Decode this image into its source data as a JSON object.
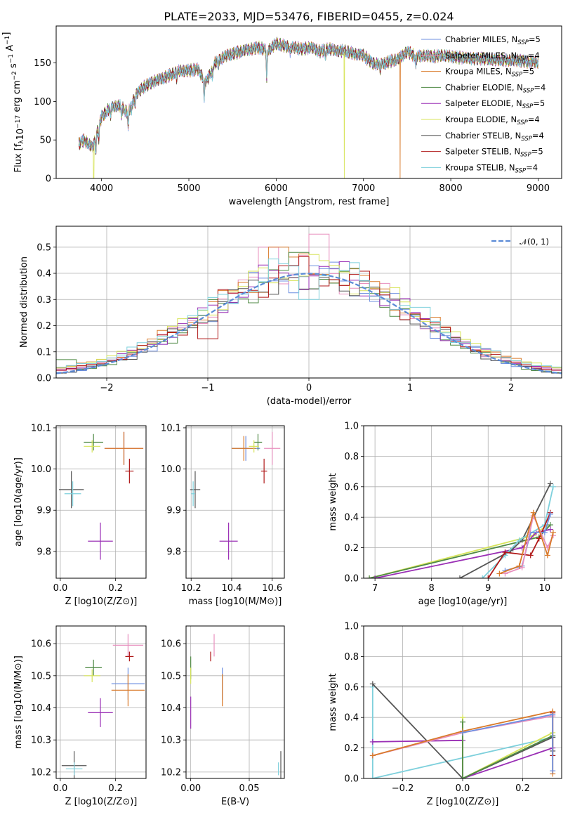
{
  "title": "PLATE=2033, MJD=53476, FIBERID=0455, z=0.024",
  "series_colors": {
    "chabrier_miles": "#6d8fe0",
    "salpeter_miles": "#e88fbe",
    "kroupa_miles": "#d97a2a",
    "chabrier_elodie": "#4f8a45",
    "salpeter_elodie": "#9a2fb5",
    "kroupa_elodie": "#d7e45a",
    "chabrier_stelib": "#555555",
    "salpeter_stelib": "#b01818",
    "kroupa_stelib": "#7ed0dc"
  },
  "chart_data": [
    {
      "id": "spectrum",
      "type": "line",
      "xlabel": "wavelength [Angstrom, rest frame]",
      "ylabel_parts": [
        "Flux [f",
        "λ",
        "10",
        "−17",
        " erg cm",
        "−2",
        " s",
        "−1",
        " A",
        "−1",
        "]"
      ],
      "xlim": [
        3480,
        9270
      ],
      "ylim": [
        0,
        198
      ],
      "xticks": [
        4000,
        5000,
        6000,
        7000,
        8000,
        9000
      ],
      "yticks": [
        0,
        50,
        100,
        150
      ],
      "legend_location": "upper right",
      "legend": [
        {
          "key": "chabrier_miles",
          "label": "Chabrier MILES, N",
          "sub": "SSP",
          "tail": "=5"
        },
        {
          "key": "salpeter_miles",
          "label": "Salpeter MILES, N",
          "sub": "SSP",
          "tail": "=4"
        },
        {
          "key": "kroupa_miles",
          "label": "Kroupa MILES, N",
          "sub": "SSP",
          "tail": "=5"
        },
        {
          "key": "chabrier_elodie",
          "label": "Chabrier ELODIE, N",
          "sub": "SSP",
          "tail": "=4"
        },
        {
          "key": "salpeter_elodie",
          "label": "Salpeter ELODIE, N",
          "sub": "SSP",
          "tail": "=5"
        },
        {
          "key": "kroupa_elodie",
          "label": "Kroupa ELODIE, N",
          "sub": "SSP",
          "tail": "=4"
        },
        {
          "key": "chabrier_stelib",
          "label": "Chabrier STELIB, N",
          "sub": "SSP",
          "tail": "=4"
        },
        {
          "key": "salpeter_stelib",
          "label": "Salpeter STELIB, N",
          "sub": "SSP",
          "tail": "=5"
        },
        {
          "key": "kroupa_stelib",
          "label": "Kroupa STELIB, N",
          "sub": "SSP",
          "tail": "=4"
        }
      ],
      "continuum": [
        [
          3740,
          45
        ],
        [
          3800,
          50
        ],
        [
          3900,
          40
        ],
        [
          3950,
          60
        ],
        [
          4000,
          80
        ],
        [
          4100,
          92
        ],
        [
          4200,
          95
        ],
        [
          4300,
          85
        ],
        [
          4400,
          110
        ],
        [
          4500,
          120
        ],
        [
          4600,
          126
        ],
        [
          4700,
          130
        ],
        [
          4800,
          135
        ],
        [
          4900,
          140
        ],
        [
          5000,
          140
        ],
        [
          5100,
          142
        ],
        [
          5200,
          125
        ],
        [
          5300,
          150
        ],
        [
          5400,
          158
        ],
        [
          5500,
          162
        ],
        [
          5600,
          165
        ],
        [
          5700,
          168
        ],
        [
          5800,
          170
        ],
        [
          5900,
          166
        ],
        [
          6000,
          175
        ],
        [
          6100,
          172
        ],
        [
          6200,
          170
        ],
        [
          6300,
          168
        ],
        [
          6400,
          170
        ],
        [
          6500,
          165
        ],
        [
          6600,
          168
        ],
        [
          6700,
          166
        ],
        [
          6800,
          165
        ],
        [
          6900,
          162
        ],
        [
          7000,
          160
        ],
        [
          7100,
          150
        ],
        [
          7200,
          148
        ],
        [
          7300,
          152
        ],
        [
          7400,
          155
        ],
        [
          7500,
          165
        ],
        [
          7600,
          158
        ],
        [
          7700,
          160
        ],
        [
          7800,
          158
        ],
        [
          7900,
          160
        ],
        [
          8000,
          158
        ],
        [
          8200,
          156
        ],
        [
          8400,
          155
        ],
        [
          8600,
          154
        ],
        [
          8800,
          153
        ],
        [
          9000,
          150
        ]
      ],
      "absorption_lines": [
        [
          3934,
          20
        ],
        [
          3969,
          18
        ],
        [
          4102,
          15
        ],
        [
          4227,
          12
        ],
        [
          4305,
          22
        ],
        [
          4341,
          12
        ],
        [
          4384,
          10
        ],
        [
          4861,
          8
        ],
        [
          5175,
          28
        ],
        [
          5270,
          10
        ],
        [
          5335,
          8
        ],
        [
          5892,
          40
        ],
        [
          6162,
          8
        ],
        [
          6563,
          10
        ],
        [
          7190,
          8
        ],
        [
          7600,
          12
        ]
      ],
      "dropouts": [
        {
          "key": "kroupa_elodie",
          "x": 3910
        },
        {
          "key": "kroupa_elodie",
          "x": 6780
        },
        {
          "key": "kroupa_miles",
          "x": 7420
        }
      ]
    },
    {
      "id": "residuals",
      "type": "histogram",
      "xlabel": "(data-model)/error",
      "ylabel": "Normed distribution",
      "xlim": [
        -2.5,
        2.5
      ],
      "ylim": [
        0,
        0.58
      ],
      "xticks": [
        -2,
        -1,
        0,
        1,
        2
      ],
      "yticks": [
        0.0,
        0.1,
        0.2,
        0.3,
        0.4,
        0.5
      ],
      "legend_location": "upper right",
      "legend_label": "𝒩(0, 1)",
      "gaussian_color": "#5b8bd6",
      "bin_width": 0.1,
      "outlier_bins": [
        {
          "key": "salpeter_miles",
          "x": 0.1,
          "y": 0.55
        },
        {
          "key": "salpeter_miles",
          "x": -0.4,
          "y": 0.5
        },
        {
          "key": "kroupa_miles",
          "x": -0.3,
          "y": 0.5
        },
        {
          "key": "chabrier_elodie",
          "x": -0.1,
          "y": 0.48
        },
        {
          "key": "kroupa_stelib",
          "x": 0.0,
          "y": 0.3
        },
        {
          "key": "chabrier_stelib",
          "x": 0.0,
          "y": 0.34
        },
        {
          "key": "chabrier_elodie",
          "x": -2.4,
          "y": 0.07
        },
        {
          "key": "kroupa_stelib",
          "x": 1.1,
          "y": 0.27
        },
        {
          "key": "salpeter_stelib",
          "x": -1.0,
          "y": 0.15
        }
      ]
    },
    {
      "id": "age_vs_Z",
      "type": "errorbar",
      "xlabel": "Z [log10(Z/Z⊙)]",
      "ylabel": "age  [log10(age/yr)]",
      "xlim": [
        -0.015,
        0.31
      ],
      "ylim": [
        9.735,
        10.105
      ],
      "xticks": [
        0.0,
        0.2
      ],
      "yticks": [
        9.8,
        9.9,
        10.0,
        10.1
      ],
      "points": [
        {
          "key": "chabrier_miles",
          "x": 0.23,
          "y": 10.05,
          "xerr": 0.07,
          "yerr": 0.04
        },
        {
          "key": "salpeter_miles",
          "x": 0.23,
          "y": 10.05,
          "xerr": 0.07,
          "yerr": 0.04
        },
        {
          "key": "kroupa_miles",
          "x": 0.23,
          "y": 10.05,
          "xerr": 0.07,
          "yerr": 0.04
        },
        {
          "key": "chabrier_elodie",
          "x": 0.12,
          "y": 10.065,
          "xerr": 0.035,
          "yerr": 0.02
        },
        {
          "key": "salpeter_elodie",
          "x": 0.145,
          "y": 9.825,
          "xerr": 0.045,
          "yerr": 0.045
        },
        {
          "key": "kroupa_elodie",
          "x": 0.115,
          "y": 10.055,
          "xerr": 0.03,
          "yerr": 0.015
        },
        {
          "key": "chabrier_stelib",
          "x": 0.04,
          "y": 9.95,
          "xerr": 0.045,
          "yerr": 0.045
        },
        {
          "key": "salpeter_stelib",
          "x": 0.25,
          "y": 9.995,
          "xerr": 0.015,
          "yerr": 0.03
        },
        {
          "key": "kroupa_stelib",
          "x": 0.045,
          "y": 9.94,
          "xerr": 0.03,
          "yerr": 0.03
        }
      ]
    },
    {
      "id": "age_vs_mass",
      "type": "errorbar",
      "xlabel": "mass [log10(M/M⊙)]",
      "xlim": [
        10.175,
        10.66
      ],
      "ylim": [
        9.735,
        10.105
      ],
      "xticks": [
        10.2,
        10.4,
        10.6
      ],
      "yticks": [
        9.8,
        9.9,
        10.0,
        10.1
      ],
      "points": [
        {
          "key": "chabrier_miles",
          "x": 10.47,
          "y": 10.05,
          "xerr": 0.07,
          "yerr": 0.03
        },
        {
          "key": "salpeter_miles",
          "x": 10.6,
          "y": 10.05,
          "xerr": 0.04,
          "yerr": 0.04
        },
        {
          "key": "kroupa_miles",
          "x": 10.46,
          "y": 10.05,
          "xerr": 0.06,
          "yerr": 0.03
        },
        {
          "key": "chabrier_elodie",
          "x": 10.53,
          "y": 10.065,
          "xerr": 0.02,
          "yerr": 0.02
        },
        {
          "key": "salpeter_elodie",
          "x": 10.385,
          "y": 9.825,
          "xerr": 0.045,
          "yerr": 0.045
        },
        {
          "key": "kroupa_elodie",
          "x": 10.51,
          "y": 10.055,
          "xerr": 0.025,
          "yerr": 0.015
        },
        {
          "key": "chabrier_stelib",
          "x": 10.22,
          "y": 9.95,
          "xerr": 0.025,
          "yerr": 0.045
        },
        {
          "key": "salpeter_stelib",
          "x": 10.56,
          "y": 9.995,
          "xerr": 0.015,
          "yerr": 0.03
        },
        {
          "key": "kroupa_stelib",
          "x": 10.21,
          "y": 9.94,
          "xerr": 0.01,
          "yerr": 0.03
        }
      ]
    },
    {
      "id": "mass_weight_vs_age",
      "type": "line",
      "xlabel": "age  [log10(age/yr)]",
      "ylabel": "mass weight",
      "xlim": [
        6.8,
        10.3
      ],
      "ylim": [
        0,
        1.0
      ],
      "xticks": [
        7,
        8,
        9,
        10
      ],
      "yticks": [
        0.0,
        0.2,
        0.4,
        0.6,
        0.8,
        1.0
      ],
      "series": [
        {
          "key": "kroupa_elodie",
          "x": [
            6.9,
            9.8,
            10.05
          ],
          "y": [
            0.0,
            0.28,
            0.35
          ]
        },
        {
          "key": "chabrier_elodie",
          "x": [
            6.9,
            9.9,
            10.1
          ],
          "y": [
            0.0,
            0.27,
            0.35
          ]
        },
        {
          "key": "salpeter_elodie",
          "x": [
            7.0,
            9.6,
            9.85,
            10.1
          ],
          "y": [
            0.0,
            0.2,
            0.3,
            0.32
          ]
        },
        {
          "key": "chabrier_stelib",
          "x": [
            8.5,
            9.4,
            9.6,
            10.1
          ],
          "y": [
            0.0,
            0.18,
            0.25,
            0.62
          ]
        },
        {
          "key": "kroupa_stelib",
          "x": [
            8.9,
            9.3,
            9.55,
            10.0,
            10.15
          ],
          "y": [
            0.0,
            0.15,
            0.25,
            0.35,
            0.6
          ]
        },
        {
          "key": "salpeter_stelib",
          "x": [
            9.0,
            9.3,
            9.75,
            9.9,
            10.1
          ],
          "y": [
            0.0,
            0.17,
            0.15,
            0.26,
            0.43
          ]
        },
        {
          "key": "chabrier_miles",
          "x": [
            9.3,
            9.6,
            9.75,
            10.0,
            10.1
          ],
          "y": [
            0.05,
            0.08,
            0.3,
            0.3,
            0.42
          ]
        },
        {
          "key": "salpeter_miles",
          "x": [
            9.3,
            9.6,
            9.8,
            10.05,
            10.15
          ],
          "y": [
            0.03,
            0.07,
            0.41,
            0.2,
            0.28
          ]
        },
        {
          "key": "kroupa_miles",
          "x": [
            9.2,
            9.55,
            9.8,
            10.05,
            10.15
          ],
          "y": [
            0.03,
            0.08,
            0.43,
            0.15,
            0.3
          ]
        }
      ]
    },
    {
      "id": "mass_vs_Z",
      "type": "errorbar",
      "xlabel": "Z [log10(Z/Z⊙)]",
      "ylabel": "mass [log10(M/M⊙)]",
      "xlim": [
        -0.015,
        0.31
      ],
      "ylim": [
        10.18,
        10.655
      ],
      "xticks": [
        0.0,
        0.2
      ],
      "yticks": [
        10.2,
        10.3,
        10.4,
        10.5,
        10.6
      ],
      "points": [
        {
          "key": "chabrier_miles",
          "x": 0.245,
          "y": 10.475,
          "xerr": 0.06,
          "yerr": 0.05
        },
        {
          "key": "salpeter_miles",
          "x": 0.245,
          "y": 10.595,
          "xerr": 0.055,
          "yerr": 0.035
        },
        {
          "key": "kroupa_miles",
          "x": 0.245,
          "y": 10.455,
          "xerr": 0.06,
          "yerr": 0.05
        },
        {
          "key": "chabrier_elodie",
          "x": 0.12,
          "y": 10.525,
          "xerr": 0.03,
          "yerr": 0.025
        },
        {
          "key": "salpeter_elodie",
          "x": 0.145,
          "y": 10.385,
          "xerr": 0.045,
          "yerr": 0.045
        },
        {
          "key": "kroupa_elodie",
          "x": 0.115,
          "y": 10.5,
          "xerr": 0.03,
          "yerr": 0.02
        },
        {
          "key": "chabrier_stelib",
          "x": 0.05,
          "y": 10.22,
          "xerr": 0.045,
          "yerr": 0.045
        },
        {
          "key": "salpeter_stelib",
          "x": 0.25,
          "y": 10.56,
          "xerr": 0.015,
          "yerr": 0.015
        },
        {
          "key": "kroupa_stelib",
          "x": 0.05,
          "y": 10.21,
          "xerr": 0.03,
          "yerr": 0.02
        }
      ]
    },
    {
      "id": "mass_vs_ebv",
      "type": "errorbar",
      "xlabel": "E(B-V)",
      "xlim": [
        -0.004,
        0.08
      ],
      "ylim": [
        10.18,
        10.655
      ],
      "xticks": [
        0.0,
        0.05
      ],
      "yticks": [
        10.2,
        10.3,
        10.4,
        10.5,
        10.6
      ],
      "points": [
        {
          "key": "chabrier_miles",
          "x": 0.027,
          "y": 10.475,
          "xerr": 0.0,
          "yerr": 0.05
        },
        {
          "key": "salpeter_miles",
          "x": 0.02,
          "y": 10.595,
          "xerr": 0.0,
          "yerr": 0.035
        },
        {
          "key": "kroupa_miles",
          "x": 0.027,
          "y": 10.455,
          "xerr": 0.0,
          "yerr": 0.05
        },
        {
          "key": "chabrier_elodie",
          "x": 0.0,
          "y": 10.525,
          "xerr": 0.0,
          "yerr": 0.035
        },
        {
          "key": "salpeter_elodie",
          "x": 0.0,
          "y": 10.385,
          "xerr": 0.0,
          "yerr": 0.05
        },
        {
          "key": "kroupa_elodie",
          "x": 0.0,
          "y": 10.5,
          "xerr": 0.0,
          "yerr": 0.025
        },
        {
          "key": "chabrier_stelib",
          "x": 0.077,
          "y": 10.22,
          "xerr": 0.0,
          "yerr": 0.045
        },
        {
          "key": "salpeter_stelib",
          "x": 0.017,
          "y": 10.56,
          "xerr": 0.0,
          "yerr": 0.015
        },
        {
          "key": "kroupa_stelib",
          "x": 0.075,
          "y": 10.21,
          "xerr": 0.0,
          "yerr": 0.02
        }
      ]
    },
    {
      "id": "mass_weight_vs_Z",
      "type": "line",
      "xlabel": "Z [log10(Z/Z⊙)]",
      "ylabel": "mass weight",
      "xlim": [
        -0.33,
        0.33
      ],
      "ylim": [
        0,
        1.0
      ],
      "xticks": [
        -0.2,
        0.0,
        0.2
      ],
      "yticks": [
        0.0,
        0.2,
        0.4,
        0.6,
        0.8,
        1.0
      ],
      "series": [
        {
          "key": "kroupa_stelib",
          "x": [
            -0.3,
            -0.3,
            0.3,
            0.3
          ],
          "y": [
            0.6,
            0.0,
            0.27,
            0.15
          ]
        },
        {
          "key": "chabrier_stelib",
          "x": [
            -0.3,
            0.0,
            0.3,
            0.3
          ],
          "y": [
            0.62,
            0.0,
            0.27,
            0.18
          ]
        },
        {
          "key": "salpeter_elodie",
          "x": [
            -0.3,
            0.0,
            0.0,
            0.3
          ],
          "y": [
            0.24,
            0.25,
            0.0,
            0.2
          ]
        },
        {
          "key": "salpeter_stelib",
          "x": [
            0.3,
            0.3
          ],
          "y": [
            0.43,
            0.15
          ]
        },
        {
          "key": "kroupa_elodie",
          "x": [
            0.0,
            0.0,
            0.3
          ],
          "y": [
            0.4,
            0.0,
            0.3
          ]
        },
        {
          "key": "chabrier_elodie",
          "x": [
            0.0,
            0.0,
            0.3
          ],
          "y": [
            0.37,
            0.0,
            0.28
          ]
        },
        {
          "key": "salpeter_miles",
          "x": [
            -0.3,
            0.0,
            0.3
          ],
          "y": [
            0.15,
            0.3,
            0.41
          ]
        },
        {
          "key": "kroupa_miles",
          "x": [
            -0.3,
            0.0,
            0.3,
            0.3
          ],
          "y": [
            0.15,
            0.31,
            0.44,
            0.03
          ]
        },
        {
          "key": "chabrier_miles",
          "x": [
            0.0,
            0.3,
            0.3
          ],
          "y": [
            0.3,
            0.42,
            0.05
          ]
        }
      ]
    }
  ]
}
